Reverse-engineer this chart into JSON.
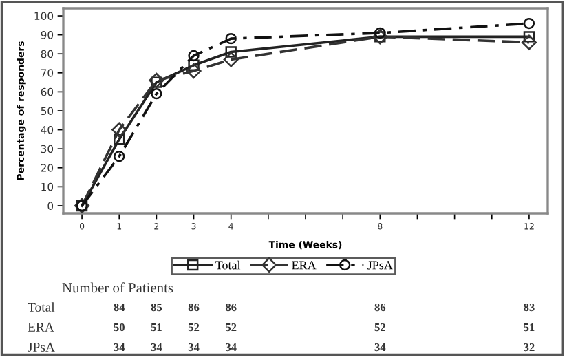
{
  "chart_data": {
    "type": "line",
    "xlabel": "Time (Weeks)",
    "ylabel": "Percentage of responders",
    "x": [
      0,
      1,
      2,
      3,
      4,
      8,
      12
    ],
    "series": [
      {
        "name": "Total",
        "color": "#222222",
        "marker": "square",
        "line_style": "solid",
        "values": [
          0,
          35,
          65,
          74,
          81,
          89,
          89
        ]
      },
      {
        "name": "ERA",
        "color": "#333333",
        "marker": "diamond",
        "line_style": "dashed",
        "values": [
          0,
          40,
          66,
          71,
          77,
          89,
          86
        ]
      },
      {
        "name": "JPsA",
        "color": "#111111",
        "marker": "circle",
        "line_style": "dashdot",
        "values": [
          0,
          26,
          59,
          79,
          88,
          91,
          96
        ]
      }
    ],
    "xlim": [
      -0.5,
      12.5
    ],
    "ylim": [
      -4,
      104
    ],
    "xticks": [
      0,
      1,
      2,
      3,
      4,
      {
        "value": 5,
        "label": null
      },
      {
        "value": 6,
        "label": null
      },
      {
        "value": 7,
        "label": null
      },
      8,
      {
        "value": 9,
        "label": null
      },
      {
        "value": 10,
        "label": null
      },
      {
        "value": 11,
        "label": null
      },
      12
    ],
    "yticks": [
      0,
      10,
      20,
      30,
      40,
      50,
      60,
      70,
      80,
      90,
      100
    ],
    "grid": false,
    "legend": "bottom",
    "annotations": [
      "Number of Patients",
      "Total",
      "84",
      "85",
      "86",
      "86",
      "86",
      "83",
      "ERA",
      "50",
      "51",
      "52",
      "52",
      "52",
      "51",
      "JPsA",
      "34",
      "34",
      "34",
      "34",
      "34",
      "32"
    ]
  }
}
